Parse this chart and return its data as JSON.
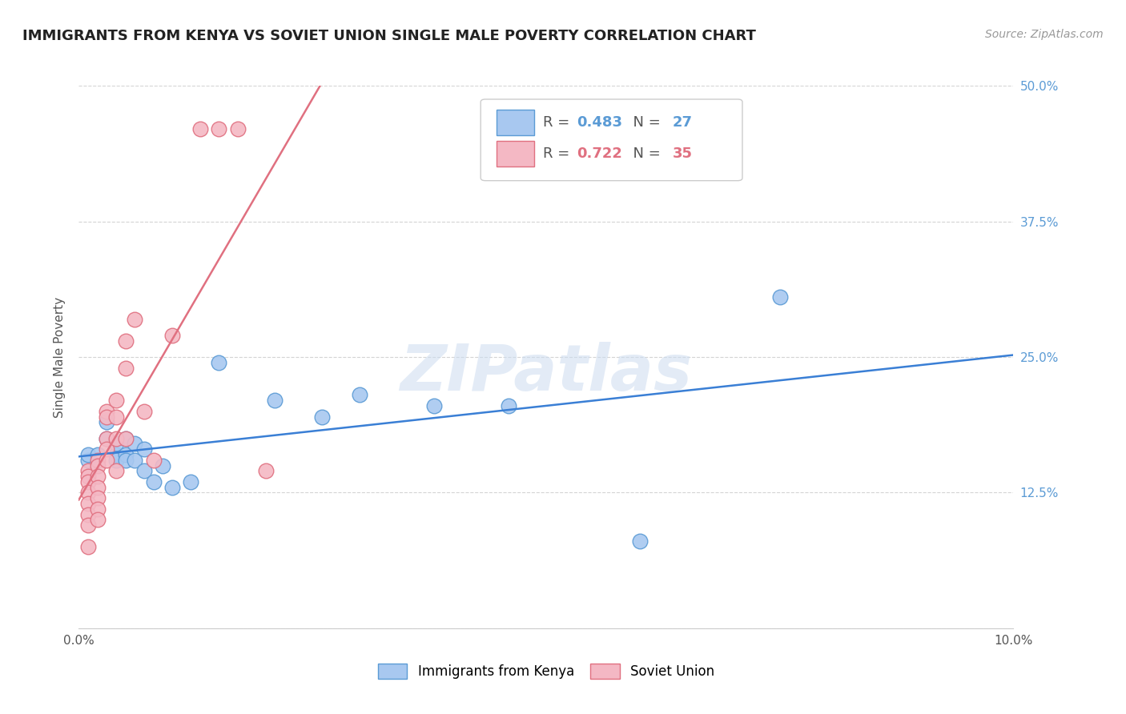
{
  "title": "IMMIGRANTS FROM KENYA VS SOVIET UNION SINGLE MALE POVERTY CORRELATION CHART",
  "source": "Source: ZipAtlas.com",
  "ylabel": "Single Male Poverty",
  "xlim": [
    0.0,
    0.1
  ],
  "ylim": [
    0.0,
    0.5
  ],
  "xticks": [
    0.0,
    0.02,
    0.04,
    0.06,
    0.08,
    0.1
  ],
  "xticklabels": [
    "0.0%",
    "",
    "",
    "",
    "",
    "10.0%"
  ],
  "yticks": [
    0.0,
    0.125,
    0.25,
    0.375,
    0.5
  ],
  "yticklabels": [
    "",
    "12.5%",
    "25.0%",
    "37.5%",
    "50.0%"
  ],
  "kenya_color": "#a8c8f0",
  "kenya_edge": "#5b9bd5",
  "soviet_color": "#f4b8c4",
  "soviet_edge": "#e07080",
  "kenya_line_color": "#3a7fd5",
  "soviet_line_color": "#e07080",
  "kenya_R": 0.483,
  "kenya_N": 27,
  "soviet_R": 0.722,
  "soviet_N": 35,
  "legend_label_kenya": "Immigrants from Kenya",
  "legend_label_soviet": "Soviet Union",
  "watermark": "ZIPatlas",
  "background_color": "#ffffff",
  "grid_color": "#d0d0d0",
  "kenya_x": [
    0.001,
    0.001,
    0.002,
    0.003,
    0.003,
    0.004,
    0.004,
    0.004,
    0.005,
    0.005,
    0.005,
    0.006,
    0.006,
    0.007,
    0.007,
    0.008,
    0.009,
    0.01,
    0.012,
    0.015,
    0.021,
    0.026,
    0.03,
    0.038,
    0.046,
    0.06,
    0.075
  ],
  "kenya_y": [
    0.155,
    0.16,
    0.16,
    0.175,
    0.19,
    0.16,
    0.17,
    0.155,
    0.16,
    0.155,
    0.175,
    0.17,
    0.155,
    0.165,
    0.145,
    0.135,
    0.15,
    0.13,
    0.135,
    0.245,
    0.21,
    0.195,
    0.215,
    0.205,
    0.205,
    0.08,
    0.305
  ],
  "soviet_x": [
    0.001,
    0.001,
    0.001,
    0.001,
    0.001,
    0.001,
    0.001,
    0.001,
    0.002,
    0.002,
    0.002,
    0.002,
    0.002,
    0.002,
    0.002,
    0.003,
    0.003,
    0.003,
    0.003,
    0.003,
    0.004,
    0.004,
    0.004,
    0.004,
    0.005,
    0.005,
    0.005,
    0.006,
    0.007,
    0.008,
    0.01,
    0.013,
    0.015,
    0.017,
    0.02
  ],
  "soviet_y": [
    0.145,
    0.14,
    0.135,
    0.125,
    0.115,
    0.105,
    0.095,
    0.075,
    0.155,
    0.15,
    0.14,
    0.13,
    0.12,
    0.11,
    0.1,
    0.2,
    0.195,
    0.175,
    0.165,
    0.155,
    0.21,
    0.195,
    0.175,
    0.145,
    0.265,
    0.24,
    0.175,
    0.285,
    0.2,
    0.155,
    0.27,
    0.46,
    0.46,
    0.46,
    0.145
  ],
  "title_fontsize": 13,
  "source_fontsize": 10,
  "axis_label_fontsize": 11,
  "tick_fontsize": 11,
  "legend_fontsize": 13
}
